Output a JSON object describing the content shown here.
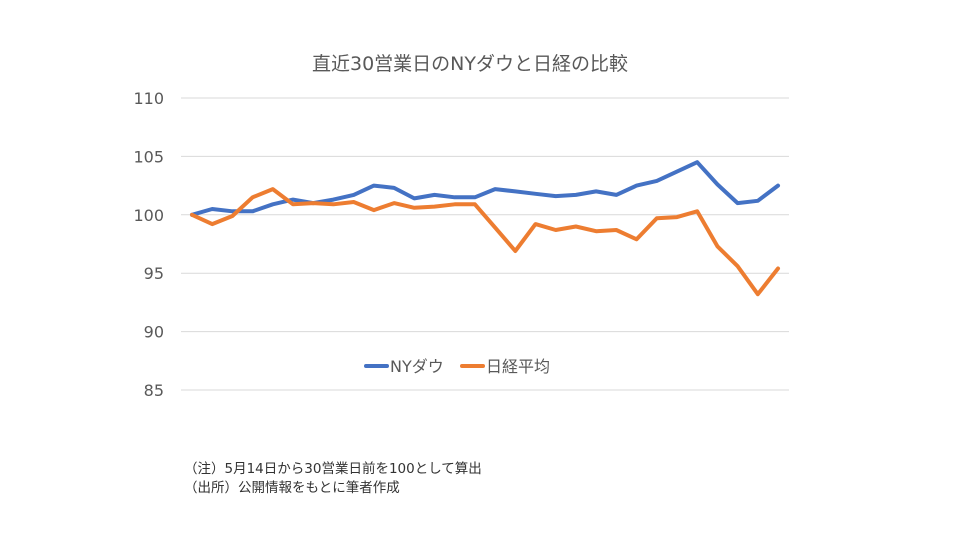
{
  "chart_data": {
    "type": "line",
    "title": "直近30営業日のNYダウと日経の比較",
    "xlabel": "",
    "ylabel": "",
    "ylim": [
      85,
      110
    ],
    "yticks": [
      110,
      105,
      100,
      95,
      90,
      85
    ],
    "grid": true,
    "legend_position": "bottom-center",
    "x": [
      1,
      2,
      3,
      4,
      5,
      6,
      7,
      8,
      9,
      10,
      11,
      12,
      13,
      14,
      15,
      16,
      17,
      18,
      19,
      20,
      21,
      22,
      23,
      24,
      25,
      26,
      27,
      28,
      29,
      30
    ],
    "series": [
      {
        "name": "NYダウ",
        "color": "#4472c4",
        "values": [
          100.0,
          100.5,
          100.3,
          100.3,
          100.9,
          101.3,
          101.0,
          101.3,
          101.7,
          102.5,
          102.3,
          101.4,
          101.7,
          101.5,
          101.5,
          102.2,
          102.0,
          101.8,
          101.6,
          101.7,
          102.0,
          101.7,
          102.5,
          102.9,
          103.7,
          104.5,
          102.6,
          101.0,
          101.2,
          102.5
        ]
      },
      {
        "name": "日経平均",
        "color": "#ed7d31",
        "values": [
          100.0,
          99.2,
          99.9,
          101.5,
          102.2,
          100.9,
          101.0,
          100.9,
          101.1,
          100.4,
          101.0,
          100.6,
          100.7,
          100.9,
          100.9,
          98.9,
          96.9,
          99.2,
          98.7,
          99.0,
          98.6,
          98.7,
          97.9,
          99.7,
          99.8,
          100.3,
          97.3,
          95.6,
          93.2,
          95.4
        ]
      }
    ]
  },
  "notes": [
    "（注）5月14日から30営業日前を100として算出",
    "（出所）公開情報をもとに筆者作成"
  ]
}
